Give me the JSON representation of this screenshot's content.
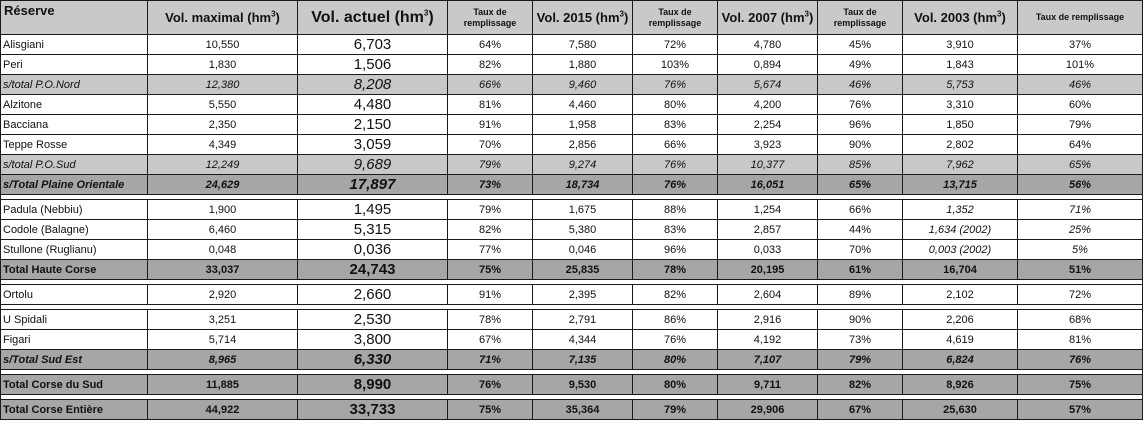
{
  "headers": {
    "reserve": "Réserve",
    "vol_max": "Vol. maximal (hm",
    "vol_actuel": "Vol. actuel (hm",
    "taux": "Taux de remplissage",
    "vol_2015": "Vol. 2015 (hm",
    "vol_2007": "Vol. 2007 (hm",
    "vol_2003": "Vol. 2003 (hm",
    "unit_sup": "3",
    "close": ")"
  },
  "rows": [
    {
      "type": "normal",
      "name": "Alisgiani",
      "max": "10,550",
      "actuel": "6,703",
      "t_act": "64%",
      "v2015": "7,580",
      "t2015": "72%",
      "v2007": "4,780",
      "t2007": "45%",
      "v2003": "3,910",
      "t2003": "37%"
    },
    {
      "type": "normal",
      "name": "Peri",
      "max": "1,830",
      "actuel": "1,506",
      "t_act": "82%",
      "v2015": "1,880",
      "t2015": "103%",
      "v2007": "0,894",
      "t2007": "49%",
      "v2003": "1,843",
      "t2003": "101%"
    },
    {
      "type": "sub",
      "name": "s/total P.O.Nord",
      "max": "12,380",
      "actuel": "8,208",
      "t_act": "66%",
      "v2015": "9,460",
      "t2015": "76%",
      "v2007": "5,674",
      "t2007": "46%",
      "v2003": "5,753",
      "t2003": "46%"
    },
    {
      "type": "normal",
      "name": "Alzitone",
      "max": "5,550",
      "actuel": "4,480",
      "t_act": "81%",
      "v2015": "4,460",
      "t2015": "80%",
      "v2007": "4,200",
      "t2007": "76%",
      "v2003": "3,310",
      "t2003": "60%"
    },
    {
      "type": "normal",
      "name": "Bacciana",
      "max": "2,350",
      "actuel": "2,150",
      "t_act": "91%",
      "v2015": "1,958",
      "t2015": "83%",
      "v2007": "2,254",
      "t2007": "96%",
      "v2003": "1,850",
      "t2003": "79%"
    },
    {
      "type": "normal",
      "name": "Teppe Rosse",
      "max": "4,349",
      "actuel": "3,059",
      "t_act": "70%",
      "v2015": "2,856",
      "t2015": "66%",
      "v2007": "3,923",
      "t2007": "90%",
      "v2003": "2,802",
      "t2003": "64%"
    },
    {
      "type": "sub",
      "name": "s/total P.O.Sud",
      "max": "12,249",
      "actuel": "9,689",
      "t_act": "79%",
      "v2015": "9,274",
      "t2015": "76%",
      "v2007": "10,377",
      "t2007": "85%",
      "v2003": "7,962",
      "t2003": "65%"
    },
    {
      "type": "plaine",
      "name": "s/Total Plaine Orientale",
      "max": "24,629",
      "actuel": "17,897",
      "t_act": "73%",
      "v2015": "18,734",
      "t2015": "76%",
      "v2007": "16,051",
      "t2007": "65%",
      "v2003": "13,715",
      "t2003": "56%"
    },
    {
      "type": "gap"
    },
    {
      "type": "normal",
      "name": "Padula (Nebbiu)",
      "max": "1,900",
      "actuel": "1,495",
      "t_act": "79%",
      "v2015": "1,675",
      "t2015": "88%",
      "v2007": "1,254",
      "t2007": "66%",
      "v2003": "1,352",
      "t2003": "71%",
      "it2003": true
    },
    {
      "type": "normal",
      "name": "Codole (Balagne)",
      "max": "6,460",
      "actuel": "5,315",
      "t_act": "82%",
      "v2015": "5,380",
      "t2015": "83%",
      "v2007": "2,857",
      "t2007": "44%",
      "v2003": "1,634 (2002)",
      "t2003": "25%",
      "it2003": true
    },
    {
      "type": "normal",
      "name": "Stullone (Ruglianu)",
      "max": "0,048",
      "actuel": "0,036",
      "t_act": "77%",
      "v2015": "0,046",
      "t2015": "96%",
      "v2007": "0,033",
      "t2007": "70%",
      "v2003": "0,003 (2002)",
      "t2003": "5%",
      "it2003": true
    },
    {
      "type": "total",
      "name": "Total Haute Corse",
      "max": "33,037",
      "actuel": "24,743",
      "t_act": "75%",
      "v2015": "25,835",
      "t2015": "78%",
      "v2007": "20,195",
      "t2007": "61%",
      "v2003": "16,704",
      "t2003": "51%"
    },
    {
      "type": "gap"
    },
    {
      "type": "normal",
      "name": "Ortolu",
      "max": "2,920",
      "actuel": "2,660",
      "t_act": "91%",
      "v2015": "2,395",
      "t2015": "82%",
      "v2007": "2,604",
      "t2007": "89%",
      "v2003": "2,102",
      "t2003": "72%"
    },
    {
      "type": "gap"
    },
    {
      "type": "normal",
      "name": "U Spidali",
      "max": "3,251",
      "actuel": "2,530",
      "t_act": "78%",
      "v2015": "2,791",
      "t2015": "86%",
      "v2007": "2,916",
      "t2007": "90%",
      "v2003": "2,206",
      "t2003": "68%"
    },
    {
      "type": "normal",
      "name": "Figari",
      "max": "5,714",
      "actuel": "3,800",
      "t_act": "67%",
      "v2015": "4,344",
      "t2015": "76%",
      "v2007": "4,192",
      "t2007": "73%",
      "v2003": "4,619",
      "t2003": "81%"
    },
    {
      "type": "plaine",
      "name": "s/Total Sud Est",
      "max": "8,965",
      "actuel": "6,330",
      "t_act": "71%",
      "v2015": "7,135",
      "t2015": "80%",
      "v2007": "7,107",
      "t2007": "79%",
      "v2003": "6,824",
      "t2003": "76%"
    },
    {
      "type": "gap"
    },
    {
      "type": "total",
      "name": "Total Corse du Sud",
      "max": "11,885",
      "actuel": "8,990",
      "t_act": "76%",
      "v2015": "9,530",
      "t2015": "80%",
      "v2007": "9,711",
      "t2007": "82%",
      "v2003": "8,926",
      "t2003": "75%"
    },
    {
      "type": "gap"
    },
    {
      "type": "total",
      "name": "Total Corse Entière",
      "max": "44,922",
      "actuel": "33,733",
      "t_act": "75%",
      "v2015": "35,364",
      "t2015": "79%",
      "v2007": "29,906",
      "t2007": "67%",
      "v2003": "25,630",
      "t2003": "57%"
    }
  ]
}
